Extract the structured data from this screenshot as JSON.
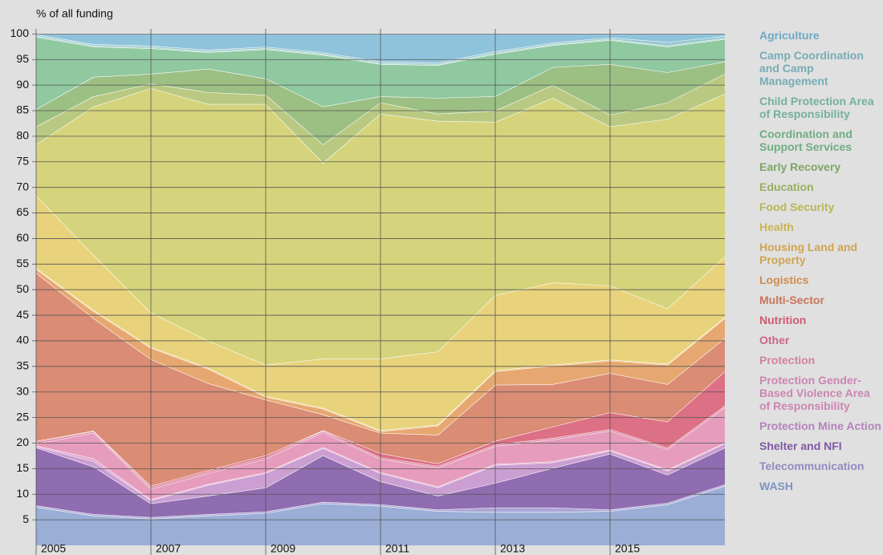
{
  "chart_data": {
    "type": "stacked_area",
    "ylabel": "% of all funding",
    "x": [
      2005,
      2006,
      2007,
      2008,
      2009,
      2010,
      2011,
      2012,
      2013,
      2014,
      2015,
      2016,
      2017
    ],
    "xlim": [
      2005,
      2017
    ],
    "xticks": [
      2005,
      2007,
      2009,
      2011,
      2013,
      2015
    ],
    "ylim": [
      0,
      101
    ],
    "yticks": [
      5,
      10,
      15,
      20,
      25,
      30,
      35,
      40,
      45,
      50,
      55,
      60,
      65,
      70,
      75,
      80,
      85,
      90,
      95,
      100
    ],
    "grid": true,
    "legend": "right",
    "series": [
      {
        "name": "WASH",
        "color": "#9aaed6",
        "values": [
          7.5,
          5.8,
          5.2,
          5.8,
          6.3,
          8.2,
          7.7,
          6.7,
          6.5,
          6.5,
          6.7,
          8,
          11.6
        ]
      },
      {
        "name": "Telecommunication",
        "color": "#aaa6d6",
        "values": [
          0.3,
          0.3,
          0.3,
          0.3,
          0.3,
          0.3,
          0.3,
          0.3,
          0.9,
          0.9,
          0.3,
          0.3,
          0.3
        ]
      },
      {
        "name": "Shelter and NFI",
        "color": "#906cb0",
        "values": [
          11.3,
          9.3,
          2.7,
          3.6,
          4.7,
          9.1,
          4.5,
          2.7,
          4.8,
          7.7,
          10.9,
          5.5,
          7.2
        ]
      },
      {
        "name": "Protection Mine Action",
        "color": "#cb9fd2",
        "values": [
          0.2,
          1.1,
          0.6,
          2.1,
          2.8,
          1.4,
          1.6,
          1.6,
          3.5,
          1.1,
          0.6,
          0.8,
          0.8
        ]
      },
      {
        "name": "Protection Gender-Based Violence Area of Responsibility",
        "color": "#e2a2cc",
        "values": [
          0.2,
          0.5,
          0.2,
          0.2,
          0.2,
          0.2,
          0.2,
          0.2,
          0.2,
          0.2,
          0.2,
          0.2,
          0.2
        ]
      },
      {
        "name": "Protection",
        "color": "#e69cbc",
        "values": [
          0.4,
          5,
          2,
          2.1,
          2.6,
          2.9,
          2.6,
          3.7,
          3.5,
          4.3,
          3.7,
          4,
          6.9
        ]
      },
      {
        "name": "Other",
        "color": "#d9809e",
        "values": [
          0.3,
          0.3,
          0.3,
          0.3,
          0.3,
          0.3,
          0.3,
          0.3,
          0.3,
          0.3,
          0.3,
          0.3,
          0.3
        ]
      },
      {
        "name": "Nutrition",
        "color": "#dc7084",
        "values": [
          0.2,
          0.1,
          0.3,
          0.3,
          0.4,
          0.1,
          0.8,
          0.5,
          0.7,
          2.2,
          3.3,
          5.1,
          6.7
        ]
      },
      {
        "name": "Multi-Sector",
        "color": "#da8c74",
        "values": [
          32.9,
          22,
          24.8,
          17,
          10.9,
          3.1,
          4,
          5.6,
          11,
          8.3,
          7.7,
          7.3,
          6.5
        ]
      },
      {
        "name": "Logistics",
        "color": "#e6a870",
        "values": [
          0.7,
          1.4,
          2.2,
          2.8,
          0.5,
          1.1,
          0.3,
          1.8,
          2.6,
          3.6,
          2.4,
          3.8,
          3.9
        ]
      },
      {
        "name": "Housing Land and Property",
        "color": "#ebc276",
        "values": [
          0.2,
          0.2,
          0.2,
          0.2,
          0.2,
          0.2,
          0.2,
          0.2,
          0.2,
          0.2,
          0.2,
          0.2,
          0.2
        ]
      },
      {
        "name": "Health",
        "color": "#e8d37c",
        "values": [
          14.2,
          10.8,
          6.7,
          5.3,
          6.1,
          9.6,
          14,
          14.3,
          14.7,
          16.1,
          14.5,
          10.8,
          11.9
        ]
      },
      {
        "name": "Food Security",
        "color": "#d5d47c",
        "values": [
          10,
          29,
          43.9,
          46.3,
          51,
          38.3,
          47.9,
          45.1,
          33.9,
          36.1,
          31.1,
          37.1,
          31.8
        ]
      },
      {
        "name": "Education",
        "color": "#b9c982",
        "values": [
          3.5,
          2,
          0.9,
          2.3,
          1.8,
          3.6,
          2.2,
          1.4,
          2.2,
          2.5,
          2.3,
          3.2,
          3.9
        ]
      },
      {
        "name": "Early Recovery",
        "color": "#9cbf84",
        "values": [
          3.4,
          3.8,
          1.9,
          4.6,
          3.2,
          7.4,
          1.2,
          3.1,
          2.8,
          3.5,
          9.9,
          5.9,
          2.4
        ]
      },
      {
        "name": "Coordination and Support Services",
        "color": "#90c8a0",
        "values": [
          14.1,
          5.9,
          5,
          3.2,
          5.7,
          10.1,
          6.3,
          6.4,
          8.3,
          4.3,
          4.7,
          5,
          4.4
        ]
      },
      {
        "name": "Child Protection Area of Responsibility",
        "color": "#95cbb8",
        "values": [
          0.2,
          0.2,
          0.2,
          0.2,
          0.2,
          0.2,
          0.2,
          0.2,
          0.2,
          0.2,
          0.2,
          0.2,
          0.2
        ]
      },
      {
        "name": "Camp Coordination and Camp Management",
        "color": "#98c8d0",
        "values": [
          0.3,
          0.3,
          0.3,
          0.3,
          0.3,
          0.3,
          0.3,
          0.3,
          0.3,
          0.3,
          0.3,
          0.7,
          0.4
        ]
      },
      {
        "name": "Agriculture",
        "color": "#8fc3dc",
        "values": [
          0.1,
          2,
          2.3,
          3.1,
          2.5,
          3.6,
          5.4,
          5.6,
          3.4,
          1.7,
          0.7,
          1.6,
          0.4
        ]
      }
    ]
  }
}
